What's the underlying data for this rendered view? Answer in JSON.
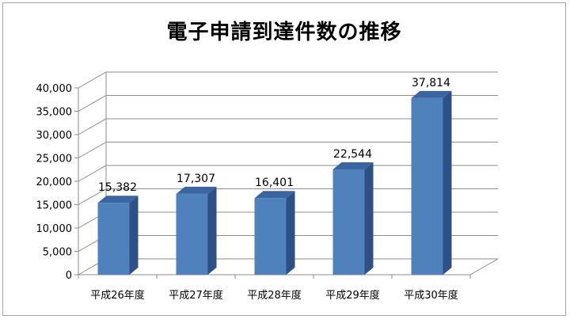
{
  "chart_data": {
    "type": "bar",
    "title": "電子申請到達件数の推移",
    "categories": [
      "平成26年度",
      "平成27年度",
      "平成28年度",
      "平成29年度",
      "平成30年度"
    ],
    "values": [
      15382,
      17307,
      16401,
      22544,
      37814
    ],
    "data_labels": [
      "15,382",
      "17,307",
      "16,401",
      "22,544",
      "37,814"
    ],
    "y_ticks": [
      "0",
      "5,000",
      "10,000",
      "15,000",
      "20,000",
      "25,000",
      "30,000",
      "35,000",
      "40,000"
    ],
    "ylim": [
      0,
      40000
    ],
    "grid": true,
    "style": "3d-column",
    "bar_color": "#4f81bd"
  }
}
